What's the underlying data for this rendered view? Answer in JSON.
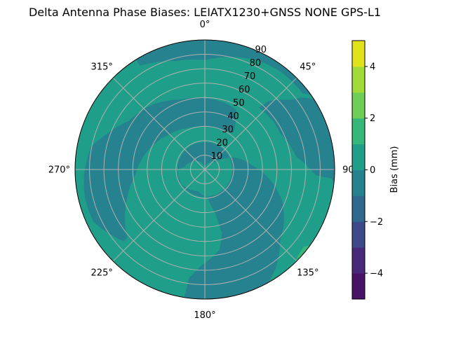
{
  "chart_data": {
    "type": "heatmap",
    "subtype": "polar filled contour",
    "title": "Delta Antenna Phase Biases: LEIATX1230+GNSS NONE GPS-L1",
    "angular_axis": {
      "direction": "clockwise",
      "zero": "north",
      "ticks": [
        "0°",
        "45°",
        "90°",
        "135°",
        "180°",
        "225°",
        "270°",
        "315°"
      ]
    },
    "radial_axis": {
      "label": "",
      "range": [
        0,
        90
      ],
      "ticks": [
        "10",
        "20",
        "30",
        "40",
        "50",
        "60",
        "70",
        "80",
        "90"
      ],
      "tick_values": [
        10,
        20,
        30,
        40,
        50,
        60,
        70,
        80,
        90
      ],
      "label_azimuth_deg": 22.5
    },
    "grid": true,
    "background_level": [
      0,
      1
    ],
    "regions": [
      {
        "level": [
          -1,
          0
        ],
        "points_az_zen": [
          [
            -32,
            90
          ],
          [
            -32,
            85
          ],
          [
            -15,
            78
          ],
          [
            0,
            76
          ],
          [
            25,
            84
          ],
          [
            38,
            86
          ],
          [
            52,
            86
          ],
          [
            55,
            90
          ],
          [
            30,
            90
          ],
          [
            0,
            90
          ],
          [
            -32,
            90
          ]
        ]
      },
      {
        "level": [
          -1,
          0
        ],
        "points_az_zen": [
          [
            57,
            90
          ],
          [
            53,
            83
          ],
          [
            51,
            77
          ],
          [
            43,
            65
          ],
          [
            41,
            57
          ],
          [
            55,
            58
          ],
          [
            64,
            58
          ],
          [
            82,
            64
          ],
          [
            93,
            77
          ],
          [
            94,
            88
          ],
          [
            96,
            90
          ],
          [
            57,
            90
          ]
        ]
      },
      {
        "level": [
          -1,
          0
        ],
        "points_az_zen": [
          [
            -78.7,
            80.5
          ],
          [
            -92.5,
            83.8
          ],
          [
            -103.5,
            85.4
          ],
          [
            -115.1,
            85.4
          ],
          [
            -131.6,
            75.2
          ],
          [
            -131.4,
            71.8
          ],
          [
            -110.3,
            57.4
          ],
          [
            -94.4,
            48.3
          ],
          [
            -72.7,
            42
          ],
          [
            -46.9,
            34.9
          ],
          [
            -23.5,
            31.3
          ],
          [
            0,
            29.5
          ],
          [
            20.1,
            29.7
          ],
          [
            38,
            32.3
          ],
          [
            27.4,
            46.9
          ],
          [
            16.1,
            48.4
          ],
          [
            0,
            49.4
          ],
          [
            -19.7,
            51.5
          ],
          [
            -39.3,
            58
          ],
          [
            -57.7,
            62.7
          ],
          [
            -71,
            73.2
          ],
          [
            -78.7,
            80.5
          ]
        ]
      },
      {
        "level": [
          -1,
          0
        ],
        "points_az_zen": [
          [
            -91.5,
            19
          ],
          [
            -82,
            14.2
          ],
          [
            0,
            1
          ],
          [
            53.3,
            8.7
          ],
          [
            67,
            21.6
          ],
          [
            85.2,
            33
          ],
          [
            102.1,
            48.6
          ],
          [
            113.2,
            58.7
          ],
          [
            123.4,
            65.6
          ],
          [
            133.2,
            71.8
          ],
          [
            144.4,
            84.3
          ],
          [
            150.7,
            90
          ],
          [
            189.1,
            90
          ],
          [
            188.2,
            75.8
          ],
          [
            182.4,
            67
          ],
          [
            169.6,
            56.5
          ],
          [
            165,
            45.8
          ],
          [
            166.8,
            30.5
          ],
          [
            174,
            20
          ],
          [
            196,
            15.7
          ],
          [
            230,
            18.4
          ],
          [
            250,
            20.2
          ],
          [
            268.5,
            19
          ]
        ]
      },
      {
        "level": [
          1,
          2
        ],
        "points_az_zen": [
          [
            126,
            90
          ],
          [
            128,
            87
          ],
          [
            133,
            88
          ],
          [
            136,
            90
          ],
          [
            126,
            90
          ]
        ]
      }
    ],
    "colorbar": {
      "label": "Bias (mm)",
      "range": [
        -5,
        5
      ],
      "levels": [
        -5,
        -4,
        -3,
        -2,
        -1,
        0,
        1,
        2,
        3,
        4,
        5
      ],
      "ticks": [
        "−4",
        "−2",
        "0",
        "2",
        "4"
      ],
      "tick_values": [
        -4,
        -2,
        0,
        2,
        4
      ],
      "colormap": "viridis",
      "colors": [
        "#471365",
        "#482878",
        "#3e4989",
        "#31688e",
        "#26828e",
        "#1f9e89",
        "#35b779",
        "#6ece58",
        "#a2da37",
        "#e1e31a"
      ]
    }
  }
}
